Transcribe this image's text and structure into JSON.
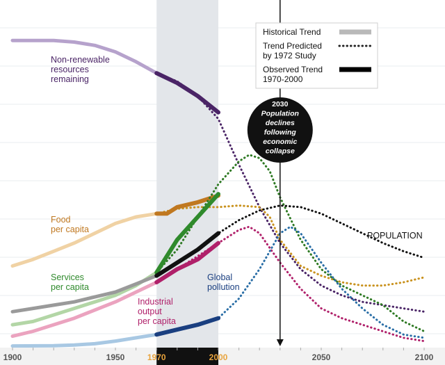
{
  "chart_data": {
    "type": "line",
    "title": "",
    "xlabel": "",
    "ylabel": "",
    "xlim": [
      1900,
      2100
    ],
    "x_ticks": [
      "1900",
      "1950",
      "1970",
      "2000",
      "2050",
      "2100"
    ],
    "highlight_ticks": [
      "1970",
      "2000"
    ],
    "highlight_color": "#e8a33c",
    "grid": true,
    "shaded_period": [
      1970,
      2000
    ],
    "shade_color": "#e3e6ea",
    "marker": {
      "x": 2030,
      "text": [
        "2030",
        "Population",
        "declines",
        "following",
        "economic",
        "collapse"
      ]
    },
    "legend": {
      "placement": "top-right",
      "entries": [
        {
          "label": [
            "Historical Trend"
          ],
          "style": "historical",
          "color": "#b9b9b9"
        },
        {
          "label": [
            "Trend Predicted",
            "by 1972 Study"
          ],
          "style": "dotted",
          "color": "#222222"
        },
        {
          "label": [
            "Observed Trend",
            "1970-2000"
          ],
          "style": "observed",
          "color": "#000000"
        }
      ]
    },
    "series": [
      {
        "name": "Non-renewable resources remaining",
        "label_lines": [
          "Non-renewable",
          "resources",
          "remaining"
        ],
        "colors": {
          "historical": "#b6a2cc",
          "observed": "#4a2466",
          "predicted": "#4a2466"
        },
        "historical": [
          [
            1900,
            0.94
          ],
          [
            1910,
            0.94
          ],
          [
            1920,
            0.94
          ],
          [
            1930,
            0.935
          ],
          [
            1940,
            0.925
          ],
          [
            1950,
            0.905
          ],
          [
            1960,
            0.875
          ],
          [
            1970,
            0.84
          ]
        ],
        "observed": [
          [
            1970,
            0.84
          ],
          [
            1980,
            0.81
          ],
          [
            1990,
            0.77
          ],
          [
            2000,
            0.72
          ]
        ],
        "predicted": [
          [
            1970,
            0.84
          ],
          [
            1980,
            0.815
          ],
          [
            1990,
            0.77
          ],
          [
            2000,
            0.7
          ],
          [
            2010,
            0.56
          ],
          [
            2020,
            0.43
          ],
          [
            2030,
            0.32
          ],
          [
            2040,
            0.24
          ],
          [
            2050,
            0.19
          ],
          [
            2060,
            0.16
          ],
          [
            2070,
            0.14
          ],
          [
            2080,
            0.13
          ],
          [
            2090,
            0.12
          ],
          [
            2100,
            0.11
          ]
        ]
      },
      {
        "name": "Food per capita",
        "label_lines": [
          "Food",
          "per capita"
        ],
        "colors": {
          "historical": "#f0d2a4",
          "observed": "#c07820",
          "predicted": "#c9921e"
        },
        "historical": [
          [
            1900,
            0.25
          ],
          [
            1910,
            0.27
          ],
          [
            1920,
            0.295
          ],
          [
            1930,
            0.32
          ],
          [
            1940,
            0.35
          ],
          [
            1950,
            0.38
          ],
          [
            1960,
            0.4
          ],
          [
            1970,
            0.41
          ]
        ],
        "observed": [
          [
            1970,
            0.41
          ],
          [
            1975,
            0.41
          ],
          [
            1980,
            0.43
          ],
          [
            1990,
            0.445
          ],
          [
            2000,
            0.465
          ]
        ],
        "predicted": [
          [
            1970,
            0.41
          ],
          [
            1980,
            0.425
          ],
          [
            1990,
            0.43
          ],
          [
            2000,
            0.43
          ],
          [
            2010,
            0.435
          ],
          [
            2020,
            0.43
          ],
          [
            2025,
            0.4
          ],
          [
            2030,
            0.33
          ],
          [
            2040,
            0.25
          ],
          [
            2050,
            0.22
          ],
          [
            2060,
            0.2
          ],
          [
            2070,
            0.19
          ],
          [
            2080,
            0.19
          ],
          [
            2090,
            0.2
          ],
          [
            2100,
            0.215
          ]
        ]
      },
      {
        "name": "Services per capita",
        "label_lines": [
          "Services",
          "per capita"
        ],
        "colors": {
          "historical": "#b3d6a6",
          "observed": "#2f8a2c",
          "predicted": "#2f7a24"
        },
        "historical": [
          [
            1900,
            0.07
          ],
          [
            1910,
            0.08
          ],
          [
            1920,
            0.1
          ],
          [
            1930,
            0.12
          ],
          [
            1940,
            0.14
          ],
          [
            1950,
            0.16
          ],
          [
            1960,
            0.19
          ],
          [
            1970,
            0.23
          ]
        ],
        "observed": [
          [
            1970,
            0.23
          ],
          [
            1975,
            0.28
          ],
          [
            1980,
            0.33
          ],
          [
            1990,
            0.4
          ],
          [
            2000,
            0.47
          ]
        ],
        "predicted": [
          [
            1970,
            0.23
          ],
          [
            1980,
            0.3
          ],
          [
            1990,
            0.4
          ],
          [
            2000,
            0.5
          ],
          [
            2010,
            0.57
          ],
          [
            2015,
            0.59
          ],
          [
            2020,
            0.58
          ],
          [
            2025,
            0.54
          ],
          [
            2030,
            0.46
          ],
          [
            2040,
            0.33
          ],
          [
            2050,
            0.24
          ],
          [
            2060,
            0.19
          ],
          [
            2070,
            0.16
          ],
          [
            2080,
            0.13
          ],
          [
            2090,
            0.08
          ],
          [
            2100,
            0.05
          ]
        ]
      },
      {
        "name": "POPULATION",
        "label_lines": [
          "POPULATION"
        ],
        "colors": {
          "historical": "#9a9a9a",
          "observed": "#111111",
          "predicted": "#111111"
        },
        "historical": [
          [
            1900,
            0.11
          ],
          [
            1910,
            0.12
          ],
          [
            1920,
            0.13
          ],
          [
            1930,
            0.14
          ],
          [
            1940,
            0.155
          ],
          [
            1950,
            0.17
          ],
          [
            1960,
            0.195
          ],
          [
            1970,
            0.22
          ]
        ],
        "observed": [
          [
            1970,
            0.22
          ],
          [
            1980,
            0.26
          ],
          [
            1990,
            0.3
          ],
          [
            2000,
            0.35
          ]
        ],
        "predicted": [
          [
            1970,
            0.22
          ],
          [
            1980,
            0.26
          ],
          [
            1990,
            0.3
          ],
          [
            2000,
            0.35
          ],
          [
            2010,
            0.39
          ],
          [
            2020,
            0.42
          ],
          [
            2030,
            0.435
          ],
          [
            2040,
            0.43
          ],
          [
            2050,
            0.41
          ],
          [
            2060,
            0.38
          ],
          [
            2070,
            0.35
          ],
          [
            2080,
            0.32
          ],
          [
            2090,
            0.295
          ],
          [
            2100,
            0.275
          ]
        ]
      },
      {
        "name": "Industrial output per capita",
        "label_lines": [
          "Industrial",
          "output",
          "per capita"
        ],
        "colors": {
          "historical": "#eba3bf",
          "observed": "#b0206a",
          "predicted": "#b0206a"
        },
        "historical": [
          [
            1900,
            0.035
          ],
          [
            1910,
            0.05
          ],
          [
            1920,
            0.07
          ],
          [
            1930,
            0.09
          ],
          [
            1940,
            0.115
          ],
          [
            1950,
            0.14
          ],
          [
            1960,
            0.17
          ],
          [
            1970,
            0.2
          ]
        ],
        "observed": [
          [
            1970,
            0.2
          ],
          [
            1980,
            0.24
          ],
          [
            1990,
            0.27
          ],
          [
            2000,
            0.32
          ]
        ],
        "predicted": [
          [
            1970,
            0.2
          ],
          [
            1980,
            0.24
          ],
          [
            1990,
            0.28
          ],
          [
            2000,
            0.32
          ],
          [
            2010,
            0.36
          ],
          [
            2015,
            0.37
          ],
          [
            2020,
            0.35
          ],
          [
            2030,
            0.26
          ],
          [
            2040,
            0.18
          ],
          [
            2050,
            0.12
          ],
          [
            2060,
            0.09
          ],
          [
            2070,
            0.07
          ],
          [
            2080,
            0.05
          ],
          [
            2090,
            0.03
          ],
          [
            2100,
            0.02
          ]
        ]
      },
      {
        "name": "Global pollution",
        "label_lines": [
          "Global",
          "pollution"
        ],
        "colors": {
          "historical": "#a8c8e3",
          "observed": "#1a3f80",
          "predicted": "#2a6ea6"
        },
        "historical": [
          [
            1900,
            0.005
          ],
          [
            1920,
            0.006
          ],
          [
            1930,
            0.008
          ],
          [
            1940,
            0.012
          ],
          [
            1950,
            0.02
          ],
          [
            1960,
            0.03
          ],
          [
            1970,
            0.04
          ]
        ],
        "observed": [
          [
            1970,
            0.04
          ],
          [
            1980,
            0.055
          ],
          [
            1990,
            0.07
          ],
          [
            2000,
            0.09
          ]
        ],
        "predicted": [
          [
            1970,
            0.04
          ],
          [
            1980,
            0.055
          ],
          [
            1990,
            0.07
          ],
          [
            2000,
            0.09
          ],
          [
            2010,
            0.15
          ],
          [
            2020,
            0.24
          ],
          [
            2030,
            0.35
          ],
          [
            2035,
            0.37
          ],
          [
            2040,
            0.35
          ],
          [
            2050,
            0.26
          ],
          [
            2060,
            0.18
          ],
          [
            2070,
            0.12
          ],
          [
            2080,
            0.07
          ],
          [
            2090,
            0.04
          ],
          [
            2100,
            0.03
          ]
        ]
      }
    ]
  }
}
